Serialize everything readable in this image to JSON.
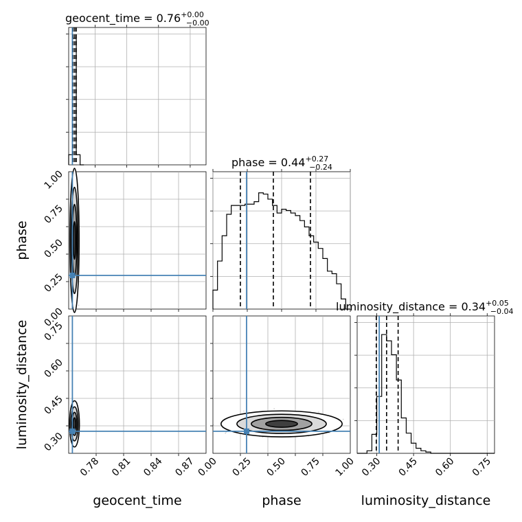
{
  "chart_data": [
    {
      "type": "histogram",
      "param": "geocent_time",
      "title_parts": {
        "name": "geocent_time",
        "median": "0.76",
        "plus": "+0.00",
        "minus": "−0.00"
      },
      "xlim": [
        0.755,
        0.885
      ],
      "xticks": [
        0.78,
        0.81,
        0.84,
        0.87
      ],
      "xtick_labels": [
        "0.78",
        "0.81",
        "0.84",
        "0.87"
      ],
      "xlabel": "geocent_time",
      "bins": [
        0.755,
        0.7586,
        0.7622,
        0.7658,
        0.7694
      ],
      "counts": [
        0.08,
        1.0,
        0.08,
        0.0
      ],
      "quantiles": [
        0.7592,
        0.7608,
        0.7622
      ],
      "truth": 0.7585
    },
    {
      "type": "histogram",
      "param": "phase",
      "title_parts": {
        "name": "phase",
        "median": "0.44",
        "plus": "+0.27",
        "minus": "−0.24"
      },
      "xlim": [
        0.0,
        1.0
      ],
      "xticks": [
        0.0,
        0.25,
        0.5,
        0.75,
        1.0
      ],
      "xtick_labels": [
        "0.00",
        "0.25",
        "0.50",
        "0.75",
        "1.00"
      ],
      "xlabel": "phase",
      "bins": [
        0,
        0.0333,
        0.0667,
        0.1,
        0.1333,
        0.1667,
        0.2,
        0.2333,
        0.2667,
        0.3,
        0.3333,
        0.3667,
        0.4,
        0.4333,
        0.4667,
        0.5,
        0.5333,
        0.5667,
        0.6,
        0.6333,
        0.6667,
        0.7,
        0.7333,
        0.7667,
        0.8,
        0.8333,
        0.8667,
        0.9,
        0.9333,
        0.9667,
        1.0
      ],
      "counts": [
        0.15,
        0.38,
        0.58,
        0.75,
        0.82,
        0.82,
        0.82,
        0.83,
        0.83,
        0.85,
        0.92,
        0.91,
        0.87,
        0.82,
        0.76,
        0.79,
        0.78,
        0.76,
        0.74,
        0.7,
        0.65,
        0.58,
        0.53,
        0.48,
        0.4,
        0.3,
        0.28,
        0.2,
        0.08,
        0.0
      ],
      "quantiles": [
        0.2,
        0.44,
        0.71
      ],
      "truth": 0.245
    },
    {
      "type": "histogram",
      "param": "luminosity_distance",
      "title_parts": {
        "name": "luminosity_distance",
        "median": "0.34",
        "plus": "+0.05",
        "minus": "−0.04"
      },
      "xlim": [
        0.22,
        0.78
      ],
      "xticks": [
        0.3,
        0.45,
        0.6,
        0.75
      ],
      "xtick_labels": [
        "0.30",
        "0.45",
        "0.60",
        "0.75"
      ],
      "xlabel": "luminosity_distance",
      "bins": [
        0.22,
        0.24,
        0.26,
        0.28,
        0.3,
        0.32,
        0.34,
        0.36,
        0.38,
        0.4,
        0.42,
        0.44,
        0.46,
        0.48,
        0.5,
        0.52,
        0.54,
        0.56,
        0.58,
        0.6,
        0.62,
        0.64,
        0.66,
        0.68,
        0.7,
        0.72,
        0.74,
        0.76,
        0.78
      ],
      "counts": [
        0,
        0,
        0.02,
        0.15,
        0.45,
        0.94,
        0.89,
        0.78,
        0.58,
        0.28,
        0.16,
        0.08,
        0.04,
        0.02,
        0.01,
        0,
        0,
        0,
        0,
        0,
        0,
        0,
        0,
        0,
        0,
        0,
        0,
        0
      ],
      "quantiles": [
        0.298,
        0.34,
        0.387
      ],
      "truth": 0.31
    },
    {
      "type": "contour",
      "x": "geocent_time",
      "y": "phase",
      "ylim": [
        0.0,
        1.0
      ],
      "yticks": [
        0.0,
        0.25,
        0.5,
        0.75,
        1.0
      ],
      "ytick_labels": [
        "0.00",
        "0.25",
        "0.50",
        "0.75",
        "1.00"
      ],
      "ylabel": "phase",
      "center": [
        0.7605,
        0.5
      ],
      "truth": [
        0.7585,
        0.245
      ]
    },
    {
      "type": "contour",
      "x": "geocent_time",
      "y": "luminosity_distance",
      "ylim": [
        0.22,
        0.78
      ],
      "yticks": [
        0.3,
        0.45,
        0.6,
        0.75
      ],
      "ytick_labels": [
        "0.30",
        "0.45",
        "0.60",
        "0.75"
      ],
      "ylabel": "luminosity_distance",
      "center": [
        0.7605,
        0.34
      ],
      "truth": [
        0.7585,
        0.31
      ]
    },
    {
      "type": "contour",
      "x": "phase",
      "y": "luminosity_distance",
      "center": [
        0.5,
        0.34
      ],
      "truth": [
        0.245,
        0.31
      ]
    }
  ]
}
